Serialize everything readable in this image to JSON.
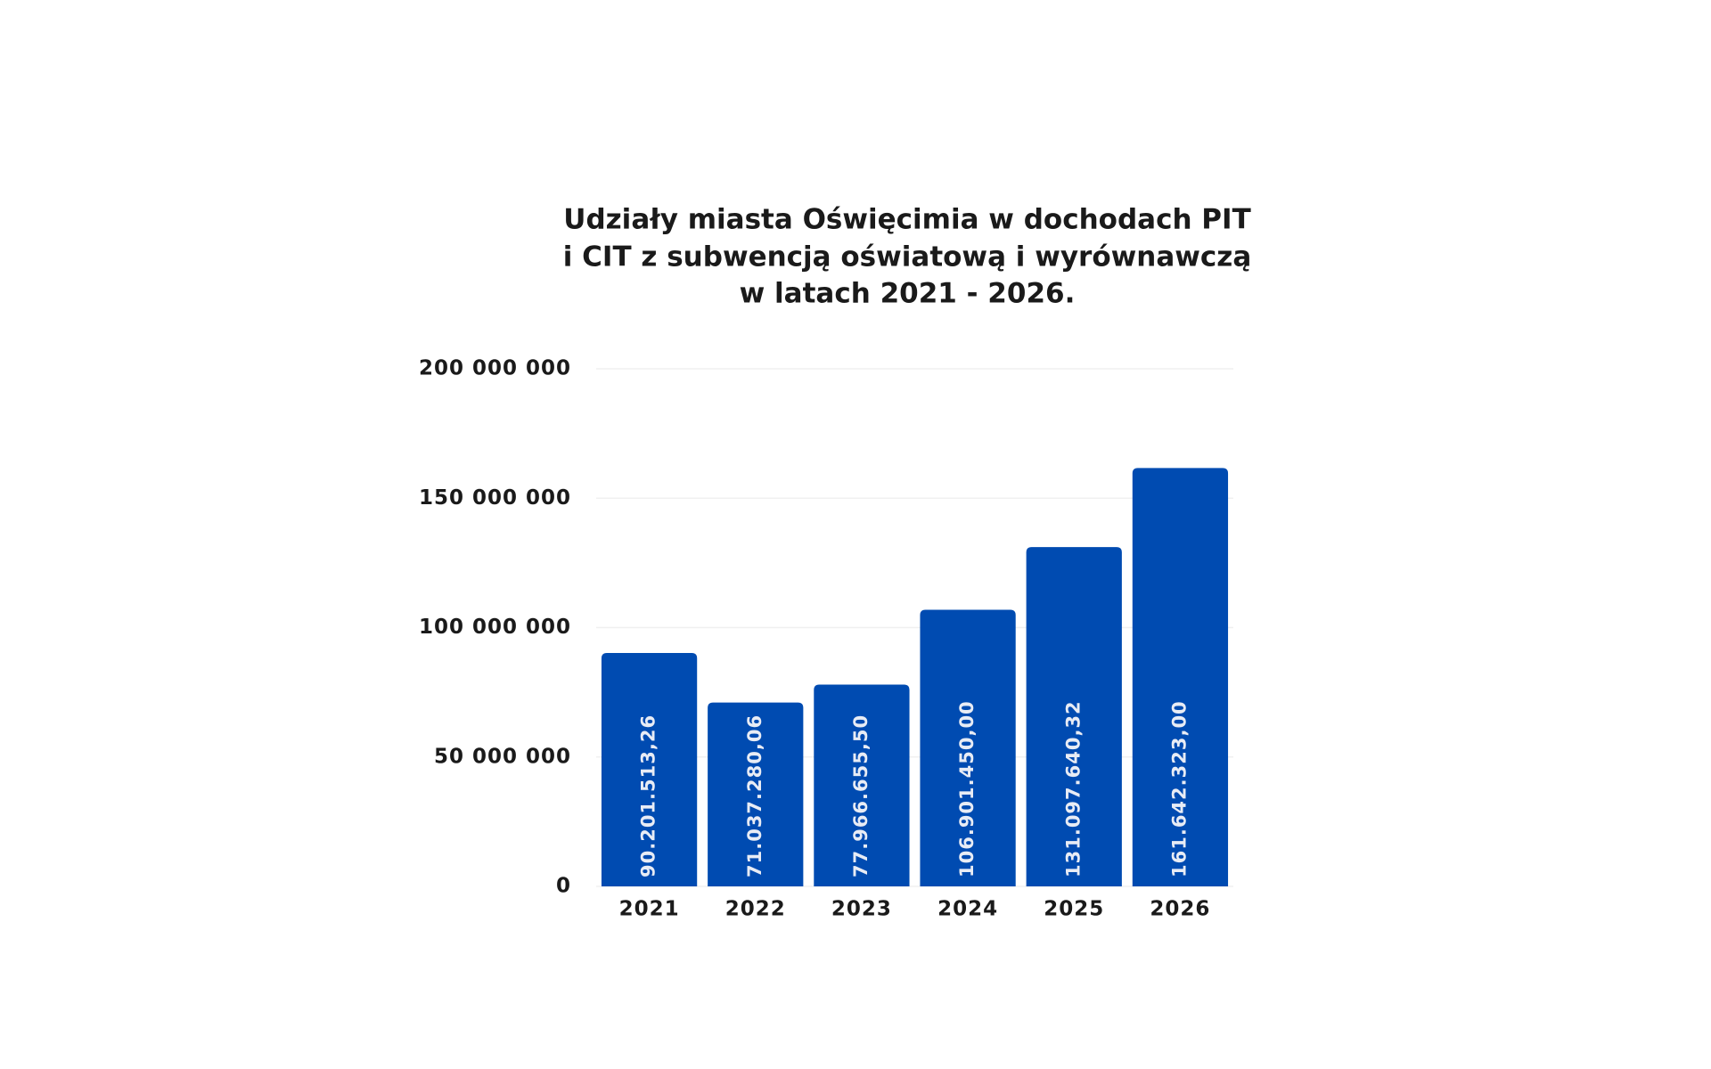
{
  "chart_data": {
    "type": "bar",
    "title": [
      "Udziały miasta Oświęcimia w dochodach PIT",
      "i CIT z subwencją oświatową i wyrównawczą",
      "w latach 2021 - 2026."
    ],
    "categories": [
      "2021",
      "2022",
      "2023",
      "2024",
      "2025",
      "2026"
    ],
    "values": [
      90201513.26,
      71037280.06,
      77966655.5,
      106901450.0,
      131097640.32,
      161642323.0
    ],
    "value_labels": [
      "90.201.513,26",
      "71.037.280,06",
      "77.966.655,50",
      "106.901.450,00",
      "131.097.640,32",
      "161.642.323,00"
    ],
    "color": "#004bb1",
    "ylim": [
      0,
      200000000
    ],
    "yticks": [
      0,
      {
        "value": 50000000,
        "label": "50 000 000"
      },
      {
        "value": 100000000,
        "label": "100 000 000"
      },
      {
        "value": 150000000,
        "label": "150 000 000"
      },
      {
        "value": 200000000,
        "label": "200 000 000"
      }
    ],
    "grid": true
  }
}
